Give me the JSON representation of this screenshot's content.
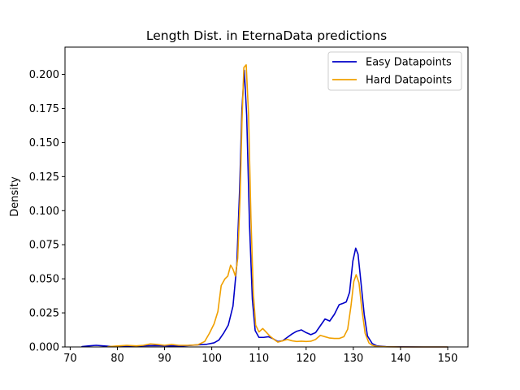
{
  "chart_data": {
    "type": "line",
    "title": "Length Dist. in EternaData predictions",
    "xlabel": "",
    "ylabel": "Density",
    "xlim": [
      68.9,
      154.3
    ],
    "ylim": [
      0,
      0.22
    ],
    "xticks": [
      70,
      80,
      90,
      100,
      110,
      120,
      130,
      140,
      150
    ],
    "xtick_labels": [
      "70",
      "80",
      "90",
      "100",
      "110",
      "120",
      "130",
      "140",
      "150"
    ],
    "yticks": [
      0,
      0.025,
      0.05,
      0.075,
      0.1,
      0.125,
      0.15,
      0.175,
      0.2
    ],
    "ytick_labels": [
      "0.000",
      "0.025",
      "0.050",
      "0.075",
      "0.100",
      "0.125",
      "0.150",
      "0.175",
      "0.200"
    ],
    "grid": false,
    "legend_position": "top-right",
    "series": [
      {
        "name": "Easy Datapoints",
        "color": "#0000c8",
        "x": [
          72.5,
          74,
          75.5,
          77,
          79,
          82,
          85,
          88,
          91,
          94,
          97,
          99,
          100.5,
          101.5,
          102.5,
          103.5,
          104.5,
          105.3,
          105.9,
          106.4,
          106.9,
          107.4,
          108,
          108.6,
          109.2,
          110,
          111,
          112,
          113,
          114,
          115,
          116,
          117,
          118,
          119,
          120,
          121,
          122,
          123,
          124,
          125,
          126,
          127,
          127.8,
          128.5,
          129.2,
          129.9,
          130.5,
          131,
          131.6,
          132.3,
          133,
          134,
          135,
          137,
          140,
          145,
          150
        ],
        "y": [
          0.0003,
          0.0008,
          0.0012,
          0.0008,
          0.0003,
          0.0005,
          0.0008,
          0.001,
          0.0008,
          0.0008,
          0.0015,
          0.002,
          0.003,
          0.005,
          0.01,
          0.016,
          0.03,
          0.06,
          0.115,
          0.175,
          0.203,
          0.17,
          0.09,
          0.035,
          0.012,
          0.007,
          0.007,
          0.0075,
          0.006,
          0.004,
          0.0045,
          0.007,
          0.0095,
          0.0115,
          0.0125,
          0.0105,
          0.009,
          0.0105,
          0.0155,
          0.0205,
          0.019,
          0.024,
          0.031,
          0.032,
          0.033,
          0.04,
          0.063,
          0.0725,
          0.068,
          0.048,
          0.024,
          0.008,
          0.0025,
          0.0008,
          0.0002,
          0.0001,
          0,
          0
        ]
      },
      {
        "name": "Hard Datapoints",
        "color": "#f0a000",
        "x": [
          78,
          80,
          82,
          84,
          85.5,
          87,
          88.5,
          90,
          91.5,
          93,
          95,
          97,
          98.5,
          99.5,
          100.5,
          101.3,
          102,
          102.8,
          103.4,
          104,
          104.5,
          105,
          105.5,
          106,
          106.4,
          106.8,
          107.3,
          107.8,
          108.3,
          108.8,
          109.3,
          110,
          110.8,
          111.5,
          112.3,
          113.2,
          114,
          115,
          116,
          117,
          118,
          119,
          120,
          121,
          122,
          123,
          124,
          125,
          126,
          127,
          128,
          128.8,
          129.5,
          130.1,
          130.6,
          131.2,
          131.8,
          132.5,
          133.3,
          134,
          135,
          137,
          140,
          145,
          150
        ],
        "y": [
          0.0002,
          0.0007,
          0.0012,
          0.0008,
          0.0012,
          0.0022,
          0.0018,
          0.0012,
          0.0018,
          0.0012,
          0.0012,
          0.0015,
          0.004,
          0.01,
          0.017,
          0.026,
          0.045,
          0.05,
          0.052,
          0.06,
          0.057,
          0.052,
          0.065,
          0.11,
          0.165,
          0.205,
          0.207,
          0.17,
          0.095,
          0.04,
          0.016,
          0.011,
          0.0135,
          0.011,
          0.008,
          0.0055,
          0.0035,
          0.0045,
          0.0055,
          0.0045,
          0.004,
          0.0042,
          0.004,
          0.0042,
          0.0055,
          0.0085,
          0.0075,
          0.0065,
          0.0062,
          0.0062,
          0.0075,
          0.013,
          0.03,
          0.048,
          0.053,
          0.047,
          0.028,
          0.01,
          0.003,
          0.0012,
          0.0004,
          0.0001,
          0,
          0,
          0
        ]
      }
    ]
  }
}
